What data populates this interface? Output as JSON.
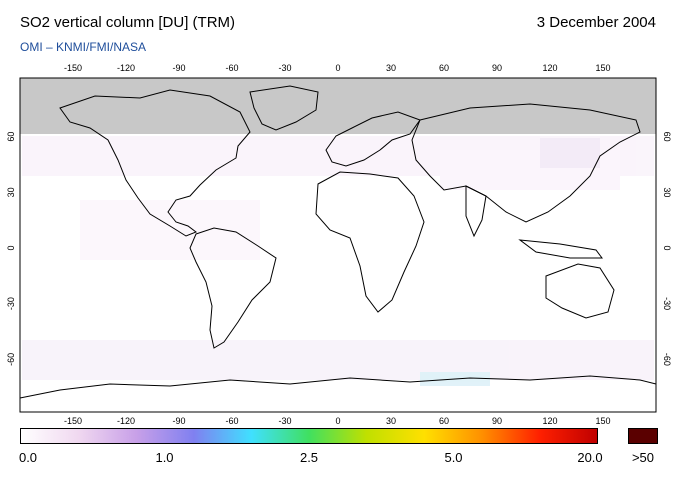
{
  "header": {
    "title": "SO2 vertical column [DU] (TRM)",
    "date": "3 December 2004",
    "credit": "OMI  –  KNMI/FMI/NASA"
  },
  "map": {
    "longitude_ticks_top": [
      "-150",
      "-120",
      "-90",
      "-60",
      "-30",
      "0",
      "30",
      "60",
      "90",
      "120",
      "150"
    ],
    "longitude_ticks_bottom": [
      "-150",
      "-120",
      "-90",
      "-60",
      "-30",
      "0",
      "30",
      "60",
      "90",
      "120",
      "150"
    ],
    "latitude_ticks_left": [
      "60",
      "30",
      "0",
      "-30",
      "-60"
    ],
    "latitude_ticks_right": [
      "60",
      "30",
      "0",
      "-30",
      "-60"
    ],
    "no_data_color": "#c8c8c8",
    "background_color": "#ffffff",
    "coastline_color": "#000000"
  },
  "colorbar": {
    "labels": [
      "0.0",
      "1.0",
      "2.5",
      "5.0",
      "20.0"
    ],
    "over_label": ">50",
    "over_color": "#5a0000",
    "gradient_colors": [
      "#ffffff",
      "#f0d8f0",
      "#c8a0e8",
      "#8080f0",
      "#40e0ff",
      "#40e060",
      "#c0e000",
      "#ffe000",
      "#ff9000",
      "#ff2000",
      "#c00000"
    ]
  }
}
